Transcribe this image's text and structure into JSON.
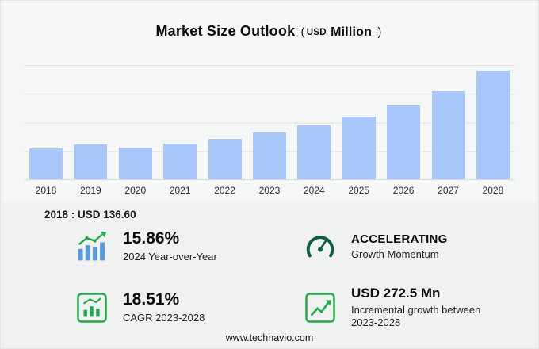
{
  "title": {
    "main": "Market Size Outlook",
    "paren_open": "(",
    "currency": "USD",
    "unit": "Million",
    "paren_close": ")"
  },
  "chart_data": {
    "type": "bar",
    "title": "Market Size Outlook (USD Million)",
    "categories": [
      "2018",
      "2019",
      "2020",
      "2021",
      "2022",
      "2023",
      "2024",
      "2025",
      "2026",
      "2027",
      "2028"
    ],
    "values": [
      136.6,
      152,
      139,
      157,
      178,
      204,
      236,
      274,
      322,
      385,
      476
    ],
    "xlabel": "",
    "ylabel": "",
    "ylim": [
      0,
      500
    ],
    "grid": true,
    "legend": "none",
    "bar_color": "#a9c7fb",
    "gridline_color": "#e1e2e2"
  },
  "annotation": {
    "text": "2018 : USD  136.60"
  },
  "stats": [
    {
      "icon": "bars-up-arrow-icon",
      "value": "15.86%",
      "label": "2024 Year-over-Year"
    },
    {
      "icon": "gauge-icon",
      "value": "ACCELERATING",
      "label": "Growth Momentum"
    },
    {
      "icon": "bar-chart-box-icon",
      "value": "18.51%",
      "label": "CAGR 2023-2028"
    },
    {
      "icon": "line-chart-box-icon",
      "value": "USD 272.5 Mn",
      "label": "Incremental growth between 2023-2028"
    }
  ],
  "footer": {
    "url": "www.technavio.com"
  },
  "colors": {
    "bar": "#a9c7fb",
    "accent_green": "#21a84a",
    "gauge_green": "#0e5f3c",
    "icon_blue": "#5b9bd5",
    "background": "#f0f1f1"
  }
}
